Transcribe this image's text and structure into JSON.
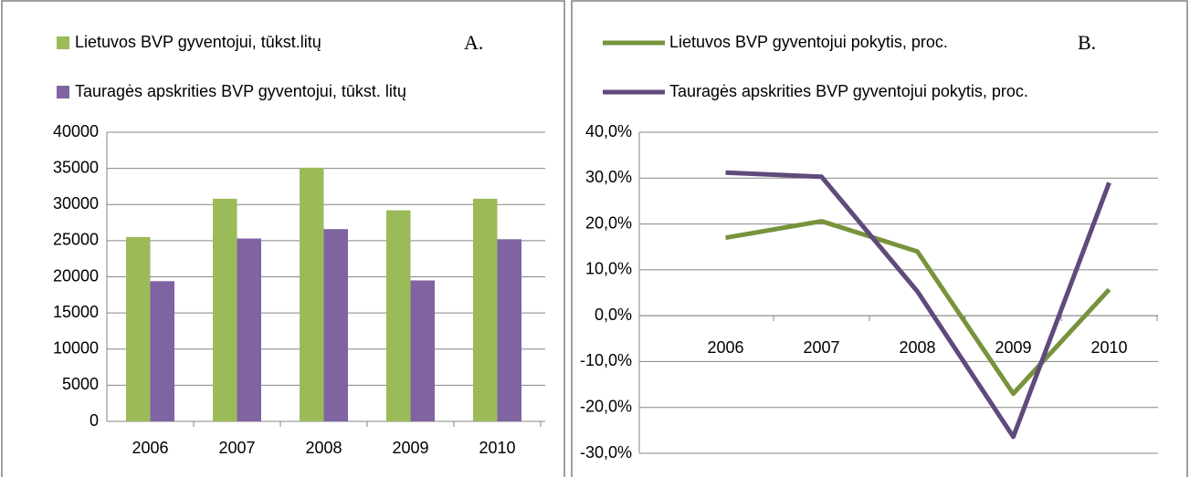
{
  "chart_data": [
    {
      "type": "bar",
      "annotation": "A.",
      "categories": [
        "2006",
        "2007",
        "2008",
        "2009",
        "2010"
      ],
      "series": [
        {
          "name": "Lietuvos BVP gyventojui, tūkst.litų",
          "color": "#9bbb59",
          "values": [
            25500,
            30800,
            35100,
            29200,
            30800
          ]
        },
        {
          "name": "Tauragės apskrities BVP gyventojui, tūkst. litų",
          "color": "#8064a2",
          "values": [
            19400,
            25300,
            26600,
            19500,
            25200
          ]
        }
      ],
      "ylim": [
        0,
        40000
      ],
      "yticks": [
        0,
        5000,
        10000,
        15000,
        20000,
        25000,
        30000,
        35000,
        40000
      ],
      "grid": true
    },
    {
      "type": "line",
      "annotation": "B.",
      "categories": [
        "2006",
        "2007",
        "2008",
        "2009",
        "2010"
      ],
      "series": [
        {
          "name": "Lietuvos BVP gyventojui pokytis, proc.",
          "color": "#77933c",
          "values": [
            17,
            20.6,
            14,
            -17,
            5.7
          ]
        },
        {
          "name": "Tauragės apskrities BVP gyventojui pokytis, proc.",
          "color": "#604a7b",
          "values": [
            31.2,
            30.3,
            5.3,
            -26.4,
            29
          ]
        }
      ],
      "ylim": [
        -30,
        40
      ],
      "yticks": [
        {
          "value": -30,
          "label": "-30,0%"
        },
        {
          "value": -20,
          "label": "-20,0%"
        },
        {
          "value": -10,
          "label": "-10,0%"
        },
        {
          "value": 0,
          "label": "0,0%"
        },
        {
          "value": 10,
          "label": "10,0%"
        },
        {
          "value": 20,
          "label": "20,0%"
        },
        {
          "value": 30,
          "label": "30,0%"
        },
        {
          "value": 40,
          "label": "40,0%"
        }
      ],
      "grid": true
    }
  ]
}
